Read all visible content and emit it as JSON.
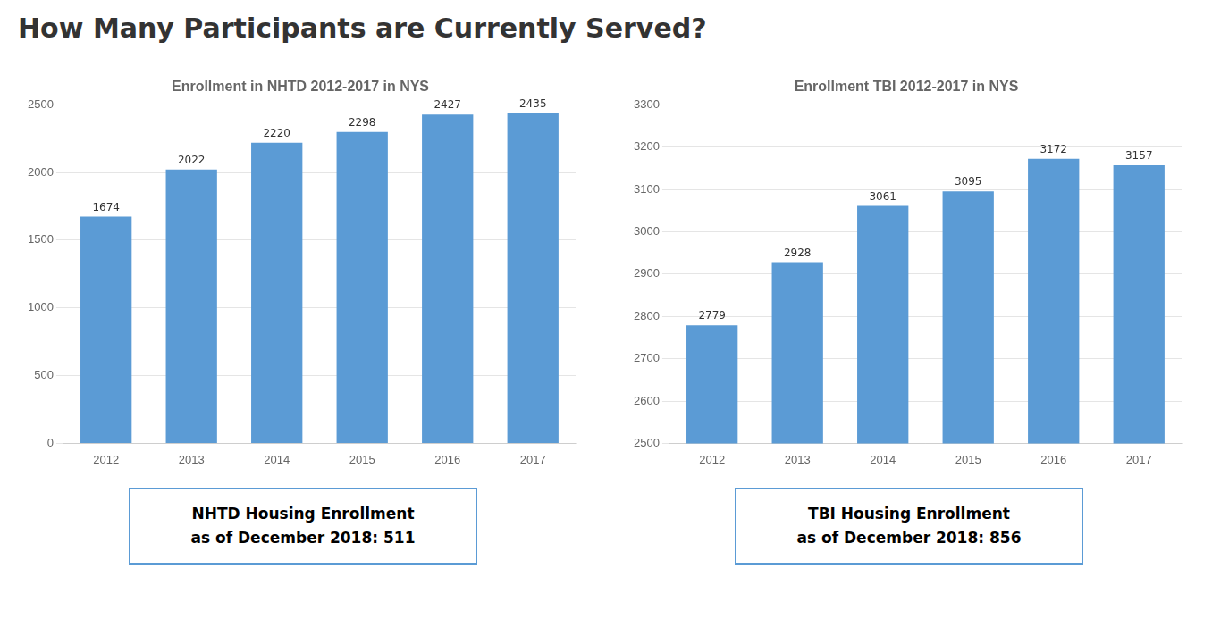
{
  "title": "How Many Participants are Currently Served?",
  "chart_data": [
    {
      "type": "bar",
      "subtitle": "Enrollment in NHTD 2012-2017 in NYS",
      "categories": [
        "2012",
        "2013",
        "2014",
        "2015",
        "2016",
        "2017"
      ],
      "values": [
        1674,
        2022,
        2220,
        2298,
        2427,
        2435
      ],
      "color": "#5B9BD5",
      "ylim": [
        0,
        2500
      ],
      "yticks": [
        0,
        500,
        1000,
        1500,
        2000,
        2500
      ],
      "grid": true,
      "data_labels": true,
      "annotations": [
        "NHTD Housing Enrollment\nas of December 2018: 511"
      ]
    },
    {
      "type": "bar",
      "subtitle": "Enrollment TBI 2012-2017 in NYS",
      "categories": [
        "2012",
        "2013",
        "2014",
        "2015",
        "2016",
        "2017"
      ],
      "values": [
        2779,
        2928,
        3061,
        3095,
        3172,
        3157
      ],
      "color": "#5B9BD5",
      "ylim": [
        2500,
        3300
      ],
      "yticks": [
        2500,
        2600,
        2700,
        2800,
        2900,
        3000,
        3100,
        3200,
        3300
      ],
      "grid": true,
      "data_labels": true,
      "annotations": [
        "TBI Housing Enrollment\nas of December 2018: 856"
      ]
    }
  ]
}
